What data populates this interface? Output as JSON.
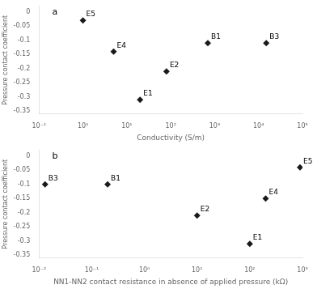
{
  "chart_data": [
    {
      "type": "scatter",
      "title": "a",
      "x": [
        1.0,
        5.0,
        20.0,
        80.0,
        700.0,
        15000.0
      ],
      "values": [
        -0.03,
        -0.14,
        -0.31,
        -0.21,
        -0.11,
        -0.11
      ],
      "labels": [
        "E5",
        "E4",
        "E1",
        "E2",
        "B1",
        "B3"
      ],
      "xlabel": "Conductivity (S/m)",
      "ylabel": "Pressure contact coefficient",
      "xlim": [
        0.1,
        100000
      ],
      "ylim": [
        -0.36,
        0.02
      ],
      "xticks": [
        {
          "value": 0.1,
          "label": "10⁻¹"
        },
        {
          "value": 1,
          "label": "10⁰"
        },
        {
          "value": 10,
          "label": "10¹"
        },
        {
          "value": 100,
          "label": "10²"
        },
        {
          "value": 1000,
          "label": "10³"
        },
        {
          "value": 10000,
          "label": "10⁴"
        },
        {
          "value": 100000,
          "label": "10⁵"
        }
      ],
      "yticks": [
        0,
        -0.05,
        -0.1,
        -0.15,
        -0.2,
        -0.25,
        -0.3,
        -0.35
      ],
      "log": "x",
      "grid": false,
      "color": "#1a1a1a",
      "marker": "diamond"
    },
    {
      "type": "scatter",
      "title": "b",
      "x": [
        0.013,
        0.2,
        10.0,
        100.0,
        200.0,
        900.0
      ],
      "values": [
        -0.1,
        -0.1,
        -0.21,
        -0.31,
        -0.15,
        -0.04
      ],
      "labels": [
        "B3",
        "B1",
        "E2",
        "E1",
        "E4",
        "E5"
      ],
      "xlabel": "NN1-NN2 contact resistance in absence of applied pressure (kΩ)",
      "ylabel": "Pressure contact coefficient",
      "xlim": [
        0.01,
        1000
      ],
      "ylim": [
        -0.36,
        0.02
      ],
      "xticks": [
        {
          "value": 0.01,
          "label": "10⁻²"
        },
        {
          "value": 0.1,
          "label": "10⁻¹"
        },
        {
          "value": 1,
          "label": "10⁰"
        },
        {
          "value": 10,
          "label": "10¹"
        },
        {
          "value": 100,
          "label": "10²"
        },
        {
          "value": 1000,
          "label": "10³"
        }
      ],
      "yticks": [
        0,
        -0.05,
        -0.1,
        -0.15,
        -0.2,
        -0.25,
        -0.3,
        -0.35
      ],
      "log": "x",
      "grid": false,
      "color": "#1a1a1a",
      "marker": "diamond"
    }
  ]
}
